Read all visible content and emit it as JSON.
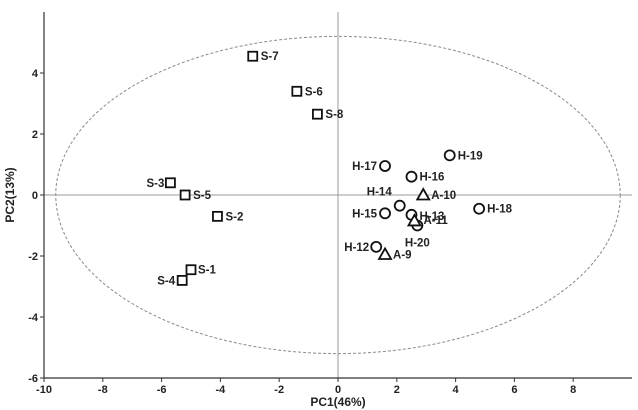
{
  "chart_data": {
    "type": "scatter",
    "title": "",
    "xlabel": "PC1(46%)",
    "ylabel": "PC2(13%)",
    "xlim": [
      -10,
      10
    ],
    "ylim": [
      -6,
      6
    ],
    "xticks": [
      -10,
      -8,
      -6,
      -4,
      -2,
      0,
      2,
      4,
      6,
      8
    ],
    "yticks": [
      -6,
      -4,
      -2,
      0,
      2,
      4
    ],
    "grid": false,
    "reference_lines": {
      "x": 0,
      "y": 0
    },
    "confidence_ellipse": {
      "center": [
        0,
        0
      ],
      "semi_axis_x": 9.6,
      "semi_axis_y": 5.2,
      "style": "dashed"
    },
    "series": [
      {
        "name": "S",
        "marker": "square",
        "points": [
          {
            "label": "S-1",
            "x": -5.0,
            "y": -2.45
          },
          {
            "label": "S-2",
            "x": -4.1,
            "y": -0.7
          },
          {
            "label": "S-3",
            "x": -5.7,
            "y": 0.4
          },
          {
            "label": "S-4",
            "x": -5.3,
            "y": -2.8
          },
          {
            "label": "S-5",
            "x": -5.2,
            "y": 0.0
          },
          {
            "label": "S-6",
            "x": -1.4,
            "y": 3.4
          },
          {
            "label": "S-7",
            "x": -2.9,
            "y": 4.55
          },
          {
            "label": "S-8",
            "x": -0.7,
            "y": 2.65
          }
        ]
      },
      {
        "name": "H",
        "marker": "circle",
        "points": [
          {
            "label": "H-12",
            "x": 1.3,
            "y": -1.7
          },
          {
            "label": "H-13",
            "x": 2.5,
            "y": -0.65
          },
          {
            "label": "H-14",
            "x": 2.1,
            "y": -0.35
          },
          {
            "label": "H-15",
            "x": 1.6,
            "y": -0.6
          },
          {
            "label": "H-16",
            "x": 2.5,
            "y": 0.6
          },
          {
            "label": "H-17",
            "x": 1.6,
            "y": 0.95
          },
          {
            "label": "H-18",
            "x": 4.8,
            "y": -0.45
          },
          {
            "label": "H-19",
            "x": 3.8,
            "y": 1.3
          },
          {
            "label": "H-20",
            "x": 2.7,
            "y": -1.0
          }
        ]
      },
      {
        "name": "A",
        "marker": "triangle",
        "points": [
          {
            "label": "A-9",
            "x": 1.6,
            "y": -1.95
          },
          {
            "label": "A-10",
            "x": 2.9,
            "y": 0.0
          },
          {
            "label": "A-11",
            "x": 2.6,
            "y": -0.85
          }
        ]
      }
    ]
  }
}
